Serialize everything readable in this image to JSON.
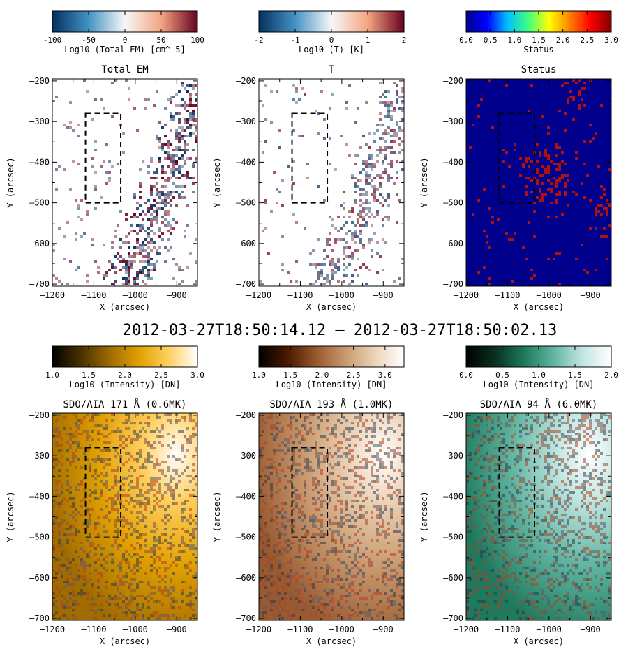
{
  "figure": {
    "time_label": "2012-03-27T18:50:14.12   –   2012-03-27T18:50:02.13"
  },
  "chart_data": [
    {
      "type": "heatmap",
      "title": "Total EM",
      "xlabel": "X (arcsec)",
      "ylabel": "Y (arcsec)",
      "xlim": [
        -1200,
        -850
      ],
      "ylim": [
        -705,
        -195
      ],
      "xticks": [
        -1200,
        -1100,
        -1000,
        -900
      ],
      "yticks": [
        -200,
        -300,
        -400,
        -500,
        -600,
        -700
      ],
      "colorbar": {
        "label": "Log10 (Total EM) [cm^-5]",
        "range": [
          -100,
          100
        ],
        "ticks": [
          -100,
          -50,
          0,
          50,
          100
        ],
        "colormap": "diverging-blue-red",
        "colors": [
          "#053061",
          "#4393c3",
          "#f7f7f7",
          "#f4a582",
          "#67001f"
        ]
      },
      "box": {
        "x": [
          -1120,
          -1035
        ],
        "y": [
          -500,
          -280
        ]
      }
    },
    {
      "type": "heatmap",
      "title": "T",
      "xlabel": "X (arcsec)",
      "ylabel": "Y (arcsec)",
      "xlim": [
        -1200,
        -850
      ],
      "ylim": [
        -705,
        -195
      ],
      "xticks": [
        -1200,
        -1100,
        -1000,
        -900
      ],
      "yticks": [
        -200,
        -300,
        -400,
        -500,
        -600,
        -700
      ],
      "colorbar": {
        "label": "Log10 (T) [K]",
        "range": [
          -2,
          2
        ],
        "ticks": [
          -2,
          -1,
          0,
          1,
          2
        ],
        "colormap": "diverging-blue-red",
        "colors": [
          "#053061",
          "#4393c3",
          "#f7f7f7",
          "#f4a582",
          "#67001f"
        ]
      },
      "box": {
        "x": [
          -1120,
          -1035
        ],
        "y": [
          -500,
          -280
        ]
      }
    },
    {
      "type": "heatmap",
      "title": "Status",
      "xlabel": "X (arcsec)",
      "ylabel": "Y (arcsec)",
      "xlim": [
        -1200,
        -850
      ],
      "ylim": [
        -705,
        -195
      ],
      "xticks": [
        -1200,
        -1100,
        -1000,
        -900
      ],
      "yticks": [
        -200,
        -300,
        -400,
        -500,
        -600,
        -700
      ],
      "colorbar": {
        "label": "Status",
        "range": [
          0,
          3
        ],
        "ticks": [
          "0.0",
          "0.5",
          "1.0",
          "1.5",
          "2.0",
          "2.5",
          "3.0"
        ],
        "colormap": "rainbow",
        "colors": [
          "#000090",
          "#0000ff",
          "#00c0ff",
          "#40ff80",
          "#ffff00",
          "#ff8000",
          "#ff0000",
          "#800000"
        ]
      },
      "box": {
        "x": [
          -1120,
          -1035
        ],
        "y": [
          -500,
          -280
        ]
      }
    },
    {
      "type": "heatmap",
      "title": "SDO/AIA 171 Å (0.6MK)",
      "xlabel": "X (arcsec)",
      "ylabel": "Y (arcsec)",
      "xlim": [
        -1200,
        -850
      ],
      "ylim": [
        -705,
        -195
      ],
      "xticks": [
        -1200,
        -1100,
        -1000,
        -900
      ],
      "yticks": [
        -200,
        -300,
        -400,
        -500,
        -600,
        -700
      ],
      "colorbar": {
        "label": "Log10 (Intensity) [DN]",
        "range": [
          1.0,
          3.0
        ],
        "ticks": [
          "1.0",
          "1.5",
          "2.0",
          "2.5",
          "3.0"
        ],
        "colormap": "aia171",
        "colors": [
          "#000000",
          "#4a3200",
          "#a06c00",
          "#e0a100",
          "#ffd060",
          "#ffffff"
        ]
      },
      "box": {
        "x": [
          -1120,
          -1035
        ],
        "y": [
          -500,
          -280
        ]
      }
    },
    {
      "type": "heatmap",
      "title": "SDO/AIA 193 Å (1.0MK)",
      "xlabel": "X (arcsec)",
      "ylabel": "Y (arcsec)",
      "xlim": [
        -1200,
        -850
      ],
      "ylim": [
        -705,
        -195
      ],
      "xticks": [
        -1200,
        -1100,
        -1000,
        -900
      ],
      "yticks": [
        -200,
        -300,
        -400,
        -500,
        -600,
        -700
      ],
      "colorbar": {
        "label": "Log10 (Intensity) [DN]",
        "range": [
          1.0,
          3.3
        ],
        "ticks": [
          "1.0",
          "1.5",
          "2.0",
          "2.5",
          "3.0"
        ],
        "colormap": "aia193",
        "colors": [
          "#000000",
          "#4a1a00",
          "#9a5a30",
          "#c99a70",
          "#ecd4b8",
          "#ffffff"
        ]
      },
      "box": {
        "x": [
          -1120,
          -1035
        ],
        "y": [
          -500,
          -280
        ]
      }
    },
    {
      "type": "heatmap",
      "title": "SDO/AIA 94 Å (6.0MK)",
      "xlabel": "X (arcsec)",
      "ylabel": "Y (arcsec)",
      "xlim": [
        -1200,
        -850
      ],
      "ylim": [
        -705,
        -195
      ],
      "xticks": [
        -1200,
        -1100,
        -1000,
        -900
      ],
      "yticks": [
        -200,
        -300,
        -400,
        -500,
        -600,
        -700
      ],
      "colorbar": {
        "label": "Log10 (Intensity) [DN]",
        "range": [
          0.0,
          2.0
        ],
        "ticks": [
          "0.0",
          "0.5",
          "1.0",
          "1.5",
          "2.0"
        ],
        "colormap": "aia94",
        "colors": [
          "#000000",
          "#0a3020",
          "#1e7a5c",
          "#60b4a0",
          "#c0e6e0",
          "#ffffff"
        ]
      },
      "box": {
        "x": [
          -1120,
          -1035
        ],
        "y": [
          -500,
          -280
        ]
      }
    }
  ]
}
